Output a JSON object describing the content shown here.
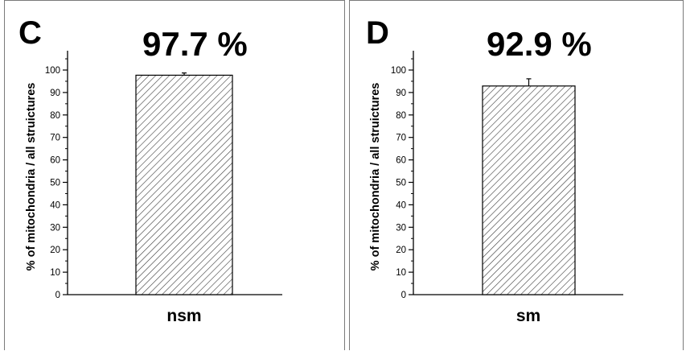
{
  "panels": [
    {
      "letter": "C",
      "headline": "97.7 %"
    },
    {
      "letter": "D",
      "headline": "92.9 %"
    }
  ],
  "chart_data": [
    {
      "type": "bar",
      "categories": [
        "nsm"
      ],
      "values": [
        97.7
      ],
      "errors": [
        1.0
      ],
      "title": "97.7 %",
      "xlabel": "",
      "ylabel": "% of mitochondria / all struictures",
      "ylim": [
        0,
        100
      ],
      "yticks": [
        0,
        10,
        20,
        30,
        40,
        50,
        60,
        70,
        80,
        90,
        100
      ],
      "bar_fill": "hatched",
      "grid": false
    },
    {
      "type": "bar",
      "categories": [
        "sm"
      ],
      "values": [
        92.9
      ],
      "errors": [
        3.2
      ],
      "title": "92.9 %",
      "xlabel": "",
      "ylabel": "% of mitochondria / all struictures",
      "ylim": [
        0,
        100
      ],
      "yticks": [
        0,
        10,
        20,
        30,
        40,
        50,
        60,
        70,
        80,
        90,
        100
      ],
      "bar_fill": "hatched",
      "grid": false
    }
  ]
}
